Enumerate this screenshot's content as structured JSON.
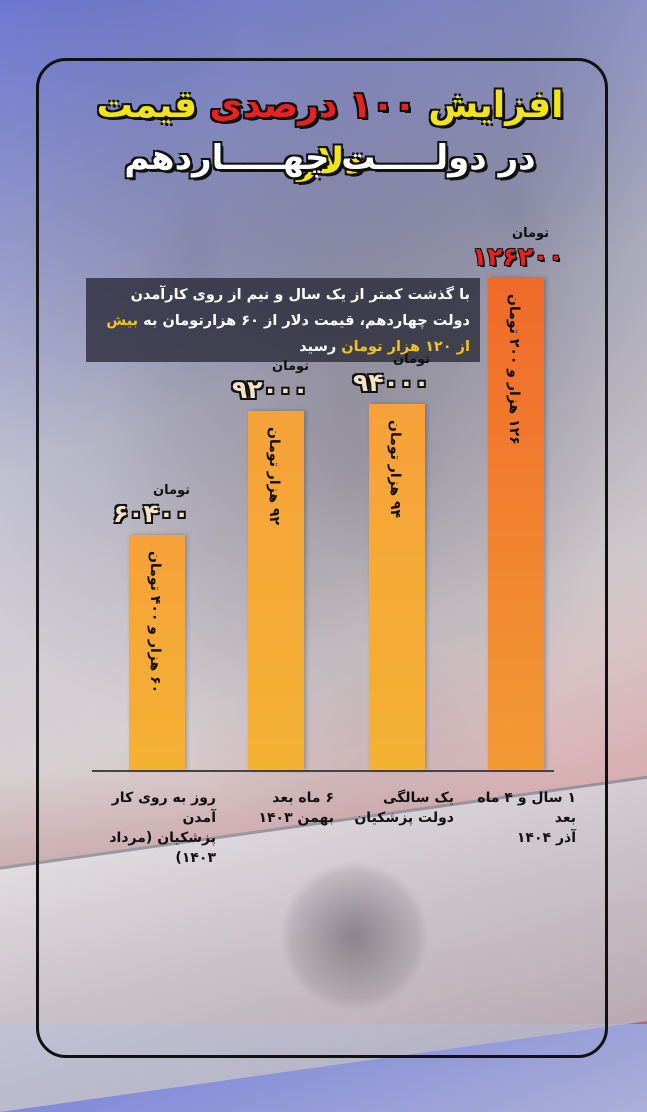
{
  "title": {
    "part1": "افزایش ",
    "highlight": "۱۰۰ درصدی",
    "part2": " قیمت دلار",
    "line2": "در دولـــــت چهـــــاردهم"
  },
  "note": {
    "text": "با گذشت کمتر از یک سال و نیم از روی کارآمدن دولت چهاردهم، قیمت دلار از ۶۰ هزارتومان به ",
    "highlight": "بیش از ۱۲۰ هزار تومان",
    "tail": " رسید"
  },
  "chart_data": {
    "type": "bar",
    "title": "افزایش ۱۰۰ درصدی قیمت دلار در دولت چهاردهم",
    "categories": [
      "روز به روی کار آمدن پزشکیان (مرداد ۱۴۰۳)",
      "۶ ماه بعد بهمن ۱۴۰۳",
      "یک سالگی دولت پزشکیان",
      "۱ سال و ۴ ماه بعد آذر ۱۴۰۴"
    ],
    "values": [
      60400,
      92000,
      94000,
      126200
    ],
    "unit": "تومان",
    "ylim": [
      0,
      140000
    ],
    "grid": false,
    "legend": "none"
  },
  "bars": [
    {
      "value_text": "۶۰۴۰۰",
      "unit": "تومان",
      "inner_label": "۶۰ هزار و ۴۰۰ تومان",
      "cat_line1": "روز به روی کار آمدن",
      "cat_line2": "پزشکیان (مرداد ۱۴۰۳)"
    },
    {
      "value_text": "۹۲۰۰۰",
      "unit": "تومان",
      "inner_label": "۹۲ هزار تومان",
      "cat_line1": "۶ ماه بعد",
      "cat_line2": "بهمن ۱۴۰۳"
    },
    {
      "value_text": "۹۴۰۰۰",
      "unit": "تومان",
      "inner_label": "۹۴ هزار تومان",
      "cat_line1": "یک سالگی",
      "cat_line2": "دولت پزشکیان"
    },
    {
      "value_text": "۱۲۶۲۰۰",
      "unit": "تومان",
      "inner_label": "۱۲۶ هزار و ۲۰۰ تومان",
      "cat_line1": "۱ سال و ۴ ماه بعد",
      "cat_line2": "آذر ۱۴۰۴"
    }
  ],
  "colors": {
    "bar": "#f5a835",
    "bar_last": "#f06a2a",
    "title_yellow": "#f2e41c",
    "title_red": "#e8231f"
  }
}
